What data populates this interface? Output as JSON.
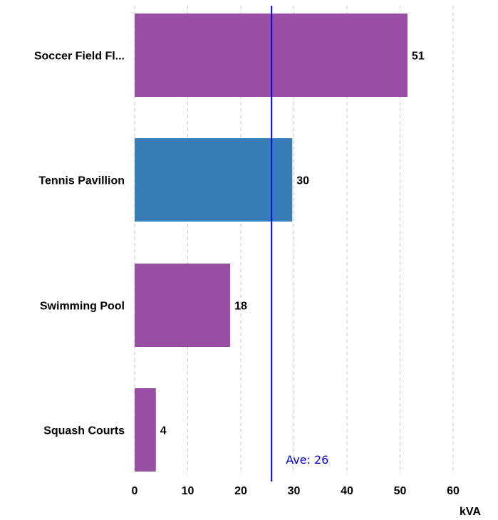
{
  "chart_data": {
    "type": "bar",
    "orientation": "horizontal",
    "categories": [
      "Soccer Field Fl...",
      "Tennis Pavillion",
      "Swimming Pool",
      "Squash Courts"
    ],
    "values": [
      51.4,
      29.7,
      18.0,
      4.0
    ],
    "value_labels": [
      "51",
      "30",
      "18",
      "4"
    ],
    "bar_colors": [
      "#984ea3",
      "#377eb8",
      "#984ea3",
      "#984ea3"
    ],
    "xlabel": "kVA",
    "ylabel": "",
    "xlim": [
      0,
      60
    ],
    "xticks": [
      0,
      10,
      20,
      30,
      40,
      50,
      60
    ],
    "xtick_labels": [
      "0",
      "10",
      "20",
      "30",
      "40",
      "50",
      "60"
    ],
    "grid": "vertical dashed",
    "reference_line": {
      "value": 25.8,
      "label": "Ave: 26",
      "color": "#0000ee"
    }
  }
}
